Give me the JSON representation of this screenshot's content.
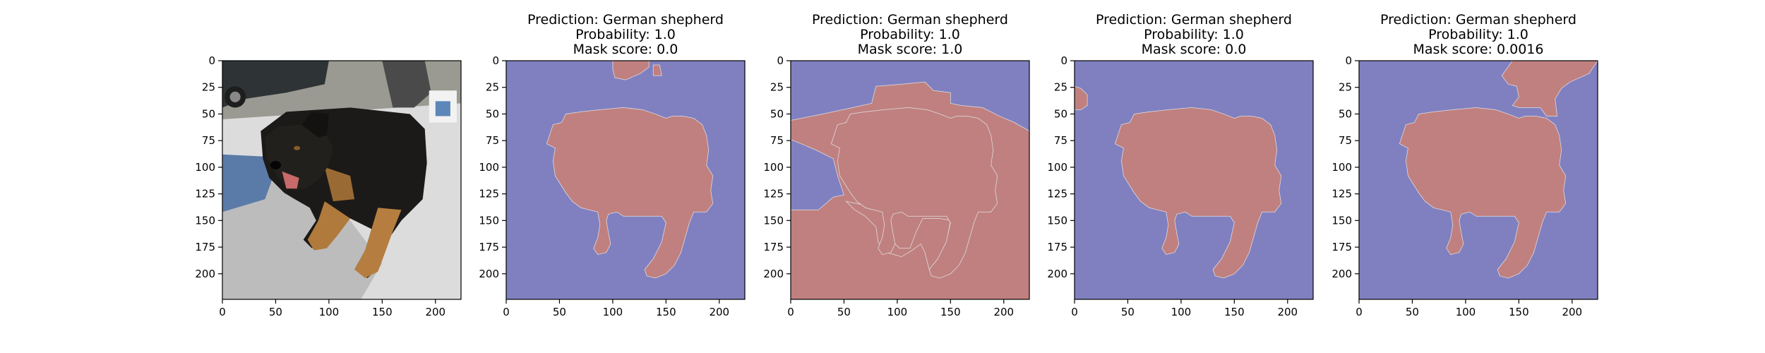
{
  "chart_data": [
    {
      "type": "image",
      "title": [],
      "content": "photo",
      "xticks": [
        0,
        50,
        100,
        150,
        200
      ],
      "yticks": [
        0,
        25,
        50,
        75,
        100,
        125,
        150,
        175,
        200
      ],
      "xlim": [
        0,
        224
      ],
      "ylim": [
        224,
        0
      ]
    },
    {
      "type": "heatmap",
      "title": [
        "Prediction: German shepherd",
        "Probability: 1.0",
        "Mask score: 0.0"
      ],
      "content": "mask",
      "xticks": [
        0,
        50,
        100,
        150,
        200
      ],
      "yticks": [
        0,
        25,
        50,
        75,
        100,
        125,
        150,
        175,
        200
      ],
      "xlim": [
        0,
        224
      ],
      "ylim": [
        224,
        0
      ]
    },
    {
      "type": "heatmap",
      "title": [
        "Prediction: German shepherd",
        "Probability: 1.0",
        "Mask score: 1.0"
      ],
      "content": "mask",
      "xticks": [
        0,
        50,
        100,
        150,
        200
      ],
      "yticks": [
        0,
        25,
        50,
        75,
        100,
        125,
        150,
        175,
        200
      ],
      "xlim": [
        0,
        224
      ],
      "ylim": [
        224,
        0
      ]
    },
    {
      "type": "heatmap",
      "title": [
        "Prediction: German shepherd",
        "Probability: 1.0",
        "Mask score: 0.0"
      ],
      "content": "mask",
      "xticks": [
        0,
        50,
        100,
        150,
        200
      ],
      "yticks": [
        0,
        25,
        50,
        75,
        100,
        125,
        150,
        175,
        200
      ],
      "xlim": [
        0,
        224
      ],
      "ylim": [
        224,
        0
      ]
    },
    {
      "type": "heatmap",
      "title": [
        "Prediction: German shepherd",
        "Probability: 1.0",
        "Mask score: 0.0016"
      ],
      "content": "mask",
      "xticks": [
        0,
        50,
        100,
        150,
        200
      ],
      "yticks": [
        0,
        25,
        50,
        75,
        100,
        125,
        150,
        175,
        200
      ],
      "xlim": [
        0,
        224
      ],
      "ylim": [
        224,
        0
      ]
    }
  ],
  "colors": {
    "mask_background": "#8080c0",
    "mask_foreground": "#c08080",
    "edge": "#e0e0e0"
  }
}
